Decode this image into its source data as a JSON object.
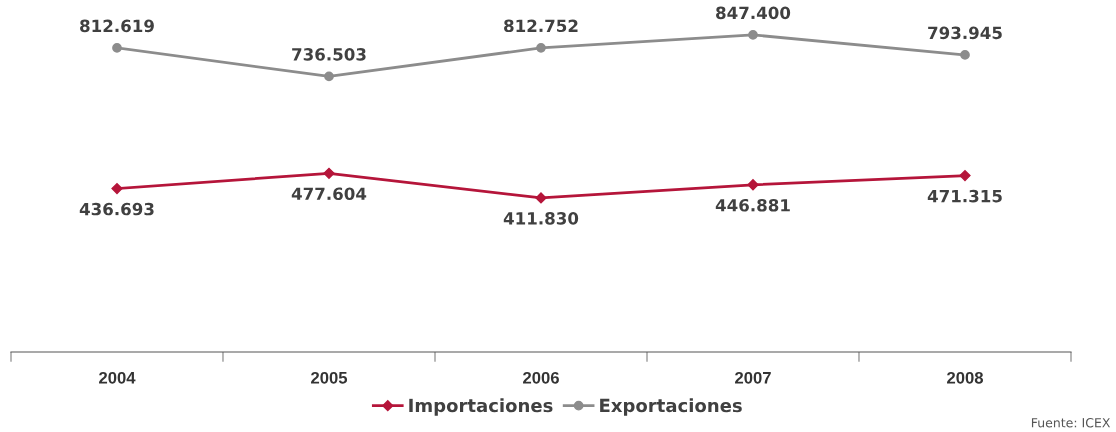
{
  "chart_data": {
    "type": "line",
    "categories": [
      "2004",
      "2005",
      "2006",
      "2007",
      "2008"
    ],
    "series": [
      {
        "name": "Importaciones",
        "color": "#b5153a",
        "marker": "diamond",
        "values": [
          436.693,
          477.604,
          411.83,
          446.881,
          471.315
        ],
        "value_labels": [
          "436.693",
          "477.604",
          "411.830",
          "446.881",
          "471.315"
        ]
      },
      {
        "name": "Exportaciones",
        "color": "#8c8c8c",
        "marker": "circle",
        "values": [
          812.619,
          736.503,
          812.752,
          847.4,
          793.945
        ],
        "value_labels": [
          "812.619",
          "736.503",
          "812.752",
          "847.400",
          "793.945"
        ]
      }
    ],
    "tick_labels": "x",
    "legend": "bottom",
    "grid": false,
    "line_style": "solid",
    "annotations": [
      "Fuente: ICEX"
    ]
  }
}
